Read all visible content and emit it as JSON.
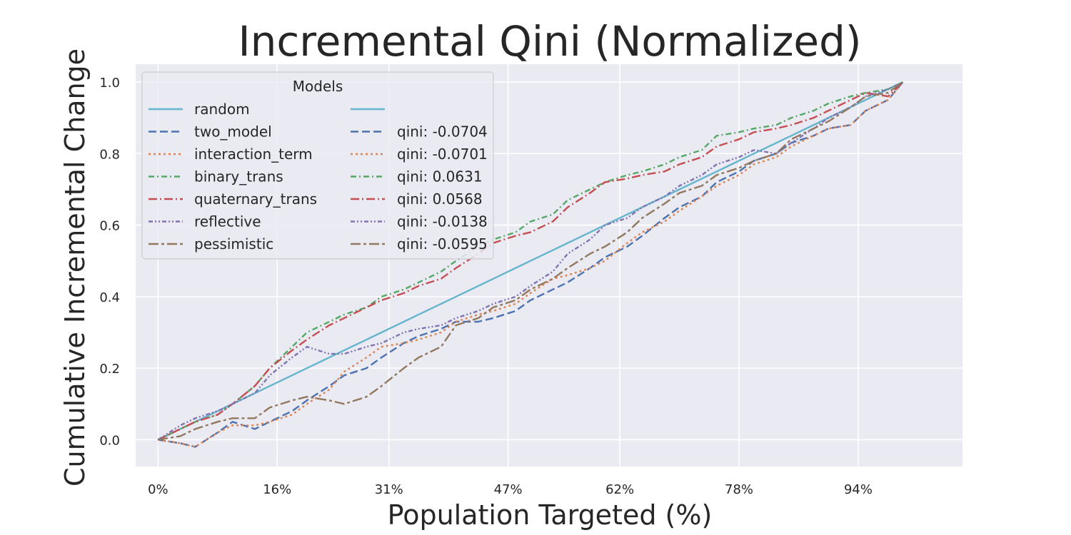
{
  "chart_data": {
    "type": "line",
    "title": "Incremental Qini (Normalized)",
    "xlabel": "Population Targeted (%)",
    "ylabel": "Cumulative Incremental Change",
    "xlim": [
      -3,
      108
    ],
    "ylim": [
      -0.075,
      1.05
    ],
    "x_ticks": [
      {
        "value": 0,
        "label": "0%"
      },
      {
        "value": 16,
        "label": "16%"
      },
      {
        "value": 31,
        "label": "31%"
      },
      {
        "value": 47,
        "label": "47%"
      },
      {
        "value": 62,
        "label": "62%"
      },
      {
        "value": 78,
        "label": "78%"
      },
      {
        "value": 94,
        "label": "94%"
      }
    ],
    "y_ticks": [
      {
        "value": 0.0,
        "label": "0.0"
      },
      {
        "value": 0.2,
        "label": "0.2"
      },
      {
        "value": 0.4,
        "label": "0.4"
      },
      {
        "value": 0.6,
        "label": "0.6"
      },
      {
        "value": 0.8,
        "label": "0.8"
      },
      {
        "value": 1.0,
        "label": "1.0"
      }
    ],
    "grid": true,
    "legend": {
      "title": "Models",
      "position": "top-left",
      "columns": 2
    },
    "series": [
      {
        "name": "random",
        "qini_label": "",
        "color": "#64b5cd",
        "dash": "",
        "x": [
          0,
          5,
          10,
          15,
          20,
          25,
          30,
          35,
          40,
          45,
          50,
          55,
          60,
          65,
          70,
          75,
          80,
          85,
          90,
          95,
          100
        ],
        "y": [
          0,
          0.05,
          0.1,
          0.15,
          0.2,
          0.25,
          0.3,
          0.35,
          0.4,
          0.45,
          0.5,
          0.55,
          0.6,
          0.65,
          0.7,
          0.75,
          0.8,
          0.85,
          0.9,
          0.95,
          1.0
        ]
      },
      {
        "name": "two_model",
        "qini_label": "qini: -0.0704",
        "color": "#4c72b0",
        "dash": "11,5",
        "x": [
          0,
          3,
          5,
          8,
          10,
          13,
          15,
          18,
          20,
          23,
          25,
          28,
          30,
          33,
          35,
          38,
          40,
          43,
          45,
          48,
          50,
          53,
          55,
          58,
          60,
          63,
          65,
          68,
          70,
          73,
          75,
          78,
          80,
          83,
          85,
          88,
          90,
          93,
          95,
          98,
          100
        ],
        "y": [
          0,
          -0.01,
          -0.02,
          0.02,
          0.05,
          0.03,
          0.05,
          0.08,
          0.11,
          0.15,
          0.18,
          0.2,
          0.23,
          0.27,
          0.29,
          0.31,
          0.33,
          0.33,
          0.34,
          0.36,
          0.39,
          0.42,
          0.44,
          0.48,
          0.51,
          0.54,
          0.57,
          0.62,
          0.65,
          0.68,
          0.72,
          0.75,
          0.78,
          0.8,
          0.83,
          0.85,
          0.87,
          0.88,
          0.92,
          0.95,
          1.0
        ]
      },
      {
        "name": "interaction_term",
        "qini_label": "qini: -0.0701",
        "color": "#dd8452",
        "dash": "3,4",
        "x": [
          0,
          3,
          5,
          8,
          10,
          13,
          15,
          18,
          20,
          23,
          25,
          28,
          30,
          33,
          35,
          38,
          40,
          43,
          45,
          48,
          50,
          53,
          55,
          58,
          60,
          63,
          65,
          68,
          70,
          73,
          75,
          78,
          80,
          83,
          85,
          88,
          90,
          93,
          95,
          98,
          100
        ],
        "y": [
          0,
          -0.01,
          -0.02,
          0.02,
          0.04,
          0.04,
          0.05,
          0.07,
          0.1,
          0.14,
          0.19,
          0.23,
          0.26,
          0.27,
          0.28,
          0.3,
          0.33,
          0.35,
          0.36,
          0.38,
          0.41,
          0.45,
          0.46,
          0.48,
          0.5,
          0.55,
          0.58,
          0.61,
          0.64,
          0.68,
          0.71,
          0.74,
          0.77,
          0.79,
          0.82,
          0.85,
          0.87,
          0.88,
          0.92,
          0.95,
          1.0
        ]
      },
      {
        "name": "binary_trans",
        "qini_label": "qini: 0.0631",
        "color": "#55a868",
        "dash": "8,4,2,4",
        "x": [
          0,
          3,
          5,
          8,
          10,
          13,
          15,
          18,
          20,
          23,
          25,
          28,
          30,
          33,
          35,
          38,
          40,
          43,
          45,
          48,
          50,
          53,
          55,
          58,
          60,
          63,
          65,
          68,
          70,
          73,
          75,
          78,
          80,
          83,
          85,
          88,
          90,
          93,
          95,
          98,
          100
        ],
        "y": [
          0,
          0.03,
          0.05,
          0.07,
          0.1,
          0.15,
          0.2,
          0.26,
          0.3,
          0.33,
          0.35,
          0.37,
          0.4,
          0.42,
          0.44,
          0.47,
          0.5,
          0.54,
          0.56,
          0.58,
          0.61,
          0.63,
          0.67,
          0.7,
          0.72,
          0.74,
          0.75,
          0.77,
          0.79,
          0.81,
          0.85,
          0.86,
          0.87,
          0.88,
          0.9,
          0.92,
          0.94,
          0.96,
          0.97,
          0.98,
          1.0
        ]
      },
      {
        "name": "quaternary_trans",
        "qini_label": "qini: 0.0568",
        "color": "#c44e52",
        "dash": "12,4,2,4",
        "x": [
          0,
          3,
          5,
          8,
          10,
          13,
          15,
          18,
          20,
          23,
          25,
          28,
          30,
          33,
          35,
          38,
          40,
          43,
          45,
          48,
          50,
          53,
          55,
          58,
          60,
          63,
          65,
          68,
          70,
          73,
          75,
          78,
          80,
          83,
          85,
          88,
          90,
          93,
          95,
          98,
          100
        ],
        "y": [
          0,
          0.03,
          0.05,
          0.07,
          0.1,
          0.15,
          0.2,
          0.25,
          0.28,
          0.32,
          0.34,
          0.37,
          0.39,
          0.41,
          0.43,
          0.45,
          0.48,
          0.52,
          0.55,
          0.57,
          0.58,
          0.61,
          0.65,
          0.69,
          0.72,
          0.73,
          0.74,
          0.75,
          0.77,
          0.79,
          0.82,
          0.84,
          0.86,
          0.87,
          0.88,
          0.9,
          0.92,
          0.95,
          0.97,
          0.96,
          1.0
        ]
      },
      {
        "name": "reflective",
        "qini_label": "qini: -0.0138",
        "color": "#8172b3",
        "dash": "6,3,2,3,2,3",
        "x": [
          0,
          3,
          5,
          8,
          10,
          13,
          15,
          18,
          20,
          23,
          25,
          28,
          30,
          33,
          35,
          38,
          40,
          43,
          45,
          48,
          50,
          53,
          55,
          58,
          60,
          63,
          65,
          68,
          70,
          73,
          75,
          78,
          80,
          83,
          85,
          88,
          90,
          93,
          95,
          98,
          100
        ],
        "y": [
          0,
          0.04,
          0.06,
          0.08,
          0.1,
          0.13,
          0.18,
          0.23,
          0.26,
          0.24,
          0.24,
          0.26,
          0.27,
          0.3,
          0.31,
          0.32,
          0.34,
          0.36,
          0.38,
          0.4,
          0.43,
          0.47,
          0.52,
          0.56,
          0.6,
          0.62,
          0.65,
          0.68,
          0.71,
          0.74,
          0.77,
          0.79,
          0.81,
          0.8,
          0.83,
          0.87,
          0.9,
          0.93,
          0.96,
          0.98,
          1.0
        ]
      },
      {
        "name": "pessimistic",
        "qini_label": "qini: -0.0595",
        "color": "#937860",
        "dash": "14,4,4,4",
        "x": [
          0,
          3,
          5,
          8,
          10,
          13,
          15,
          18,
          20,
          23,
          25,
          28,
          30,
          33,
          35,
          38,
          40,
          43,
          45,
          48,
          50,
          53,
          55,
          58,
          60,
          63,
          65,
          68,
          70,
          73,
          75,
          78,
          80,
          83,
          85,
          88,
          90,
          93,
          95,
          98,
          100
        ],
        "y": [
          0,
          0.01,
          0.03,
          0.05,
          0.06,
          0.06,
          0.09,
          0.11,
          0.12,
          0.11,
          0.1,
          0.12,
          0.15,
          0.2,
          0.23,
          0.26,
          0.32,
          0.34,
          0.37,
          0.39,
          0.42,
          0.45,
          0.48,
          0.52,
          0.54,
          0.58,
          0.62,
          0.66,
          0.69,
          0.71,
          0.74,
          0.76,
          0.78,
          0.8,
          0.84,
          0.87,
          0.89,
          0.93,
          0.96,
          0.97,
          1.0
        ]
      }
    ]
  }
}
